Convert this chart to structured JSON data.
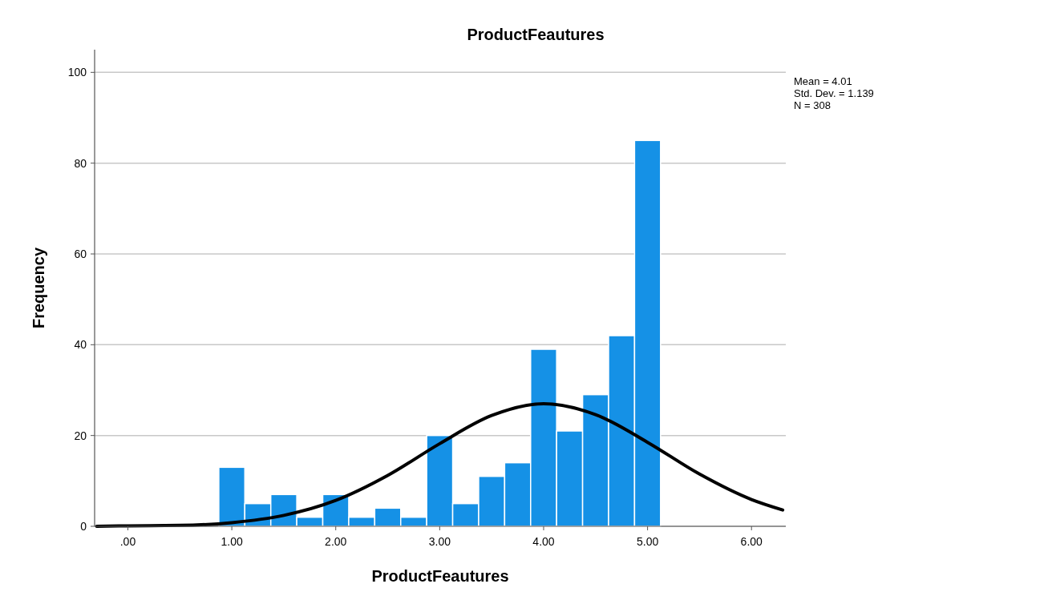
{
  "chart_data": {
    "type": "histogram",
    "title": "ProductFeautures",
    "xlabel": "ProductFeautures",
    "ylabel": "Frequency",
    "bins": [
      0.875,
      1.125,
      1.375,
      1.625,
      1.875,
      2.125,
      2.375,
      2.625,
      2.875,
      3.125,
      3.375,
      3.625,
      3.875,
      4.125,
      4.375,
      4.625,
      4.875,
      5.125
    ],
    "values": [
      13,
      5,
      7,
      2,
      7,
      2,
      4,
      2,
      20,
      5,
      11,
      14,
      39,
      21,
      29,
      42,
      85
    ],
    "color": "#1591e6",
    "series": [
      {
        "type": "line",
        "color": "#000000",
        "x": [
          -0.3,
          0,
          0.5,
          1,
          1.5,
          2,
          2.5,
          3,
          3.5,
          4,
          4.5,
          5,
          5.5,
          6,
          6.3
        ],
        "values": [
          0,
          0.1,
          0.2,
          0.8,
          2.4,
          5.7,
          11.2,
          18.2,
          24.4,
          27,
          24.6,
          18.5,
          11.5,
          5.9,
          3.6
        ]
      }
    ],
    "xlim": [
      -0.32,
      6.33
    ],
    "xticks": [
      {
        "value": 0,
        "label": ".00"
      },
      {
        "value": 1,
        "label": "1.00"
      },
      {
        "value": 2,
        "label": "2.00"
      },
      {
        "value": 3,
        "label": "3.00"
      },
      {
        "value": 4,
        "label": "4.00"
      },
      {
        "value": 5,
        "label": "5.00"
      },
      {
        "value": 6,
        "label": "6.00"
      }
    ],
    "ylim": [
      0,
      105
    ],
    "yticks": [
      0,
      20,
      40,
      60,
      80,
      100
    ],
    "grid": "y",
    "annotations": [
      "Mean = 4.01",
      "Std. Dev. = 1.139",
      "N = 308"
    ]
  }
}
